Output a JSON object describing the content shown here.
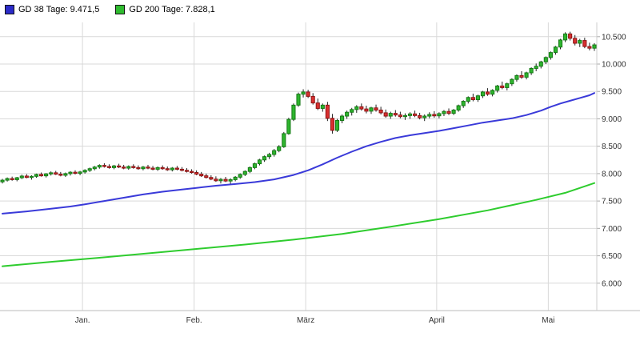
{
  "legend": {
    "gd38": {
      "label": "GD 38 Tage: 9.471,5",
      "color": "#2b2bc8"
    },
    "gd200": {
      "label": "GD 200 Tage: 7.828,1",
      "color": "#2fbb2f"
    }
  },
  "colors": {
    "up_fill": "#2eb52e",
    "up_border": "#157a15",
    "down_fill": "#d93030",
    "down_border": "#8f1414",
    "wick": "#222222",
    "ma38": "#3a3ad9",
    "ma200": "#2ecc2e",
    "grid": "#d9d9d9",
    "axis_text": "#333333"
  },
  "chart_data": {
    "type": "candlestick",
    "title": "",
    "xlabel": "",
    "ylabel": "",
    "ylim": [
      5500,
      10760
    ],
    "grid": true,
    "legend_position": "top-left",
    "y_ticks": [
      {
        "value": 10500,
        "label": "10.500"
      },
      {
        "value": 10000,
        "label": "10.000"
      },
      {
        "value": 9500,
        "label": "9.500"
      },
      {
        "value": 9000,
        "label": "9.000"
      },
      {
        "value": 8500,
        "label": "8.500"
      },
      {
        "value": 8000,
        "label": "8.000"
      },
      {
        "value": 7500,
        "label": "7.500"
      },
      {
        "value": 7000,
        "label": "7.000"
      },
      {
        "value": 6500,
        "label": "6.500"
      },
      {
        "value": 6000,
        "label": "6.000"
      }
    ],
    "x_ticks": [
      {
        "label": "Jan.",
        "index": 17
      },
      {
        "label": "Feb.",
        "index": 40
      },
      {
        "label": "März",
        "index": 63
      },
      {
        "label": "April",
        "index": 90
      },
      {
        "label": "Mai",
        "index": 113
      }
    ],
    "ohlc_format": [
      "open",
      "high",
      "low",
      "close"
    ],
    "ohlc": [
      [
        7850,
        7905,
        7820,
        7880
      ],
      [
        7880,
        7930,
        7855,
        7910
      ],
      [
        7910,
        7945,
        7870,
        7890
      ],
      [
        7890,
        7940,
        7860,
        7925
      ],
      [
        7925,
        7980,
        7900,
        7955
      ],
      [
        7955,
        7990,
        7915,
        7930
      ],
      [
        7930,
        7970,
        7890,
        7950
      ],
      [
        7950,
        8000,
        7925,
        7985
      ],
      [
        7985,
        8020,
        7945,
        7960
      ],
      [
        7960,
        8010,
        7930,
        7995
      ],
      [
        7995,
        8040,
        7965,
        8015
      ],
      [
        8015,
        8050,
        7975,
        7990
      ],
      [
        7990,
        8030,
        7950,
        7970
      ],
      [
        7970,
        8020,
        7940,
        8000
      ],
      [
        8000,
        8045,
        7965,
        8025
      ],
      [
        8025,
        8060,
        7985,
        8005
      ],
      [
        8005,
        8050,
        7970,
        8030
      ],
      [
        8030,
        8080,
        8000,
        8060
      ],
      [
        8060,
        8110,
        8030,
        8090
      ],
      [
        8090,
        8140,
        8060,
        8120
      ],
      [
        8120,
        8170,
        8090,
        8150
      ],
      [
        8150,
        8190,
        8110,
        8130
      ],
      [
        8130,
        8170,
        8090,
        8110
      ],
      [
        8110,
        8160,
        8080,
        8140
      ],
      [
        8140,
        8180,
        8100,
        8120
      ],
      [
        8120,
        8160,
        8080,
        8100
      ],
      [
        8100,
        8150,
        8070,
        8130
      ],
      [
        8130,
        8170,
        8090,
        8110
      ],
      [
        8110,
        8150,
        8070,
        8090
      ],
      [
        8090,
        8140,
        8060,
        8120
      ],
      [
        8120,
        8160,
        8080,
        8100
      ],
      [
        8100,
        8140,
        8060,
        8080
      ],
      [
        8080,
        8130,
        8050,
        8110
      ],
      [
        8110,
        8150,
        8070,
        8090
      ],
      [
        8090,
        8130,
        8050,
        8070
      ],
      [
        8070,
        8120,
        8040,
        8100
      ],
      [
        8100,
        8140,
        8060,
        8080
      ],
      [
        8080,
        8120,
        8040,
        8060
      ],
      [
        8060,
        8100,
        8020,
        8040
      ],
      [
        8040,
        8080,
        8000,
        8020
      ],
      [
        8020,
        8060,
        7970,
        7990
      ],
      [
        7990,
        8030,
        7940,
        7960
      ],
      [
        7960,
        8000,
        7910,
        7930
      ],
      [
        7930,
        7970,
        7880,
        7900
      ],
      [
        7900,
        7950,
        7850,
        7870
      ],
      [
        7870,
        7920,
        7820,
        7895
      ],
      [
        7895,
        7940,
        7845,
        7865
      ],
      [
        7865,
        7915,
        7815,
        7890
      ],
      [
        7890,
        7955,
        7860,
        7935
      ],
      [
        7935,
        8005,
        7905,
        7985
      ],
      [
        7985,
        8060,
        7955,
        8040
      ],
      [
        8040,
        8130,
        8010,
        8110
      ],
      [
        8110,
        8200,
        8080,
        8180
      ],
      [
        8180,
        8270,
        8150,
        8250
      ],
      [
        8250,
        8330,
        8215,
        8310
      ],
      [
        8310,
        8380,
        8265,
        8350
      ],
      [
        8350,
        8450,
        8310,
        8420
      ],
      [
        8420,
        8520,
        8390,
        8490
      ],
      [
        8490,
        8760,
        8470,
        8730
      ],
      [
        8730,
        9020,
        8710,
        8990
      ],
      [
        8990,
        9280,
        8960,
        9250
      ],
      [
        9250,
        9480,
        9220,
        9450
      ],
      [
        9450,
        9540,
        9390,
        9490
      ],
      [
        9490,
        9530,
        9380,
        9410
      ],
      [
        9410,
        9470,
        9260,
        9290
      ],
      [
        9290,
        9370,
        9160,
        9190
      ],
      [
        9190,
        9280,
        9130,
        9250
      ],
      [
        9250,
        9310,
        8960,
        9010
      ],
      [
        9010,
        9090,
        8730,
        8790
      ],
      [
        8790,
        9000,
        8760,
        8970
      ],
      [
        8970,
        9080,
        8920,
        9050
      ],
      [
        9050,
        9150,
        9000,
        9120
      ],
      [
        9120,
        9200,
        9060,
        9170
      ],
      [
        9170,
        9250,
        9110,
        9220
      ],
      [
        9220,
        9280,
        9150,
        9180
      ],
      [
        9180,
        9240,
        9100,
        9140
      ],
      [
        9140,
        9220,
        9090,
        9200
      ],
      [
        9200,
        9260,
        9130,
        9160
      ],
      [
        9160,
        9220,
        9080,
        9110
      ],
      [
        9110,
        9170,
        9020,
        9050
      ],
      [
        9050,
        9130,
        9000,
        9100
      ],
      [
        9100,
        9160,
        9040,
        9070
      ],
      [
        9070,
        9130,
        9010,
        9040
      ],
      [
        9040,
        9100,
        8980,
        9060
      ],
      [
        9060,
        9120,
        9000,
        9090
      ],
      [
        9090,
        9150,
        9030,
        9060
      ],
      [
        9060,
        9110,
        8990,
        9020
      ],
      [
        9020,
        9080,
        8960,
        9050
      ],
      [
        9050,
        9120,
        9010,
        9080
      ],
      [
        9080,
        9140,
        9020,
        9055
      ],
      [
        9055,
        9120,
        9010,
        9095
      ],
      [
        9095,
        9160,
        9050,
        9135
      ],
      [
        9135,
        9190,
        9070,
        9100
      ],
      [
        9100,
        9180,
        9070,
        9160
      ],
      [
        9160,
        9260,
        9130,
        9240
      ],
      [
        9240,
        9340,
        9200,
        9320
      ],
      [
        9320,
        9410,
        9280,
        9390
      ],
      [
        9390,
        9460,
        9320,
        9350
      ],
      [
        9350,
        9440,
        9310,
        9420
      ],
      [
        9420,
        9510,
        9380,
        9490
      ],
      [
        9490,
        9560,
        9420,
        9450
      ],
      [
        9450,
        9540,
        9410,
        9520
      ],
      [
        9520,
        9620,
        9480,
        9600
      ],
      [
        9600,
        9680,
        9540,
        9570
      ],
      [
        9570,
        9660,
        9520,
        9640
      ],
      [
        9640,
        9740,
        9600,
        9720
      ],
      [
        9720,
        9810,
        9680,
        9790
      ],
      [
        9790,
        9870,
        9730,
        9760
      ],
      [
        9760,
        9860,
        9720,
        9840
      ],
      [
        9840,
        9940,
        9800,
        9920
      ],
      [
        9920,
        10010,
        9870,
        9960
      ],
      [
        9960,
        10060,
        9920,
        10040
      ],
      [
        10040,
        10140,
        10000,
        10120
      ],
      [
        10120,
        10230,
        10080,
        10210
      ],
      [
        10210,
        10330,
        10170,
        10310
      ],
      [
        10310,
        10460,
        10270,
        10440
      ],
      [
        10440,
        10580,
        10400,
        10550
      ],
      [
        10550,
        10590,
        10430,
        10470
      ],
      [
        10470,
        10530,
        10340,
        10380
      ],
      [
        10380,
        10460,
        10310,
        10430
      ],
      [
        10430,
        10480,
        10290,
        10320
      ],
      [
        10320,
        10390,
        10250,
        10290
      ],
      [
        10290,
        10380,
        10240,
        10350
      ]
    ],
    "moving_averages": [
      {
        "name": "GD 38 Tage",
        "current_value": 9471.5,
        "points": [
          [
            0,
            7270
          ],
          [
            5,
            7310
          ],
          [
            10,
            7360
          ],
          [
            14,
            7400
          ],
          [
            17,
            7440
          ],
          [
            21,
            7500
          ],
          [
            25,
            7560
          ],
          [
            29,
            7620
          ],
          [
            33,
            7670
          ],
          [
            37,
            7710
          ],
          [
            40,
            7740
          ],
          [
            44,
            7780
          ],
          [
            48,
            7810
          ],
          [
            52,
            7845
          ],
          [
            56,
            7895
          ],
          [
            60,
            7975
          ],
          [
            63,
            8060
          ],
          [
            66,
            8170
          ],
          [
            69,
            8290
          ],
          [
            72,
            8400
          ],
          [
            75,
            8500
          ],
          [
            78,
            8580
          ],
          [
            81,
            8650
          ],
          [
            84,
            8700
          ],
          [
            87,
            8740
          ],
          [
            90,
            8780
          ],
          [
            93,
            8830
          ],
          [
            96,
            8880
          ],
          [
            99,
            8930
          ],
          [
            102,
            8970
          ],
          [
            105,
            9010
          ],
          [
            108,
            9070
          ],
          [
            111,
            9150
          ],
          [
            113,
            9220
          ],
          [
            115,
            9280
          ],
          [
            117,
            9330
          ],
          [
            119,
            9380
          ],
          [
            121,
            9430
          ],
          [
            122,
            9471.5
          ]
        ]
      },
      {
        "name": "GD 200 Tage",
        "current_value": 7828.1,
        "points": [
          [
            0,
            6310
          ],
          [
            10,
            6390
          ],
          [
            20,
            6465
          ],
          [
            30,
            6545
          ],
          [
            40,
            6625
          ],
          [
            50,
            6705
          ],
          [
            60,
            6795
          ],
          [
            70,
            6900
          ],
          [
            80,
            7030
          ],
          [
            90,
            7170
          ],
          [
            100,
            7330
          ],
          [
            110,
            7520
          ],
          [
            116,
            7650
          ],
          [
            122,
            7828.1
          ]
        ]
      }
    ]
  }
}
